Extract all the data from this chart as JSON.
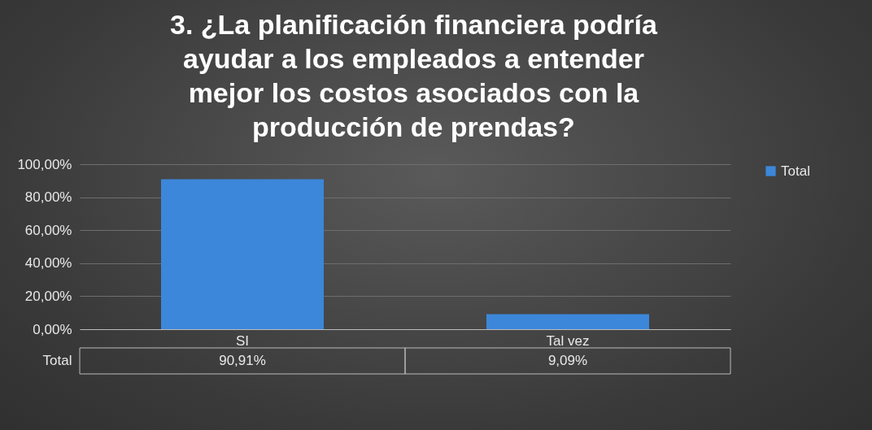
{
  "chart_data": {
    "type": "bar",
    "title": "3. ¿La planificación financiera podría ayudar a los empleados a entender mejor los costos asociados con la producción de prendas?",
    "categories": [
      "SI",
      "Tal vez"
    ],
    "series": [
      {
        "name": "Total",
        "color": "#3c87da",
        "values": [
          90.91,
          9.09
        ],
        "value_labels": [
          "90,91%",
          "9,09%"
        ]
      }
    ],
    "ylim": [
      0,
      100
    ],
    "yticks": [
      {
        "value": 0,
        "label": "0,00%"
      },
      {
        "value": 20,
        "label": "20,00%"
      },
      {
        "value": 40,
        "label": "40,00%"
      },
      {
        "value": 60,
        "label": "60,00%"
      },
      {
        "value": 80,
        "label": "80,00%"
      },
      {
        "value": 100,
        "label": "100,00%"
      }
    ],
    "grid": "y",
    "legend": "right"
  }
}
